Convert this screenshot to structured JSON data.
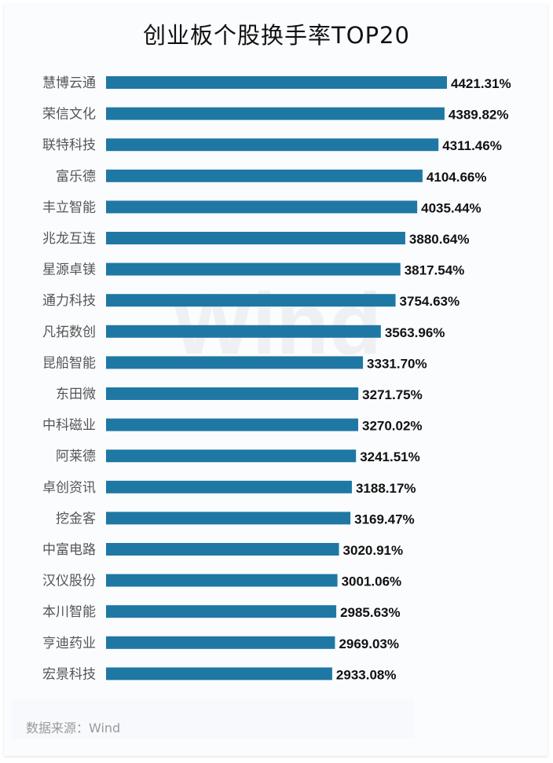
{
  "chart_data": {
    "type": "bar",
    "orientation": "horizontal",
    "title": "创业板个股换手率TOP20",
    "categories": [
      "慧博云通",
      "荣信文化",
      "联特科技",
      "富乐德",
      "丰立智能",
      "兆龙互连",
      "星源卓镁",
      "通力科技",
      "凡拓数创",
      "昆船智能",
      "东田微",
      "中科磁业",
      "阿莱德",
      "卓创资讯",
      "挖金客",
      "中富电路",
      "汉仪股份",
      "本川智能",
      "亨迪药业",
      "宏景科技"
    ],
    "values": [
      4421.31,
      4389.82,
      4311.46,
      4104.66,
      4035.44,
      3880.64,
      3817.54,
      3754.63,
      3563.96,
      3331.7,
      3271.75,
      3270.02,
      3241.51,
      3188.17,
      3169.47,
      3020.91,
      3001.06,
      2985.63,
      2969.03,
      2933.08
    ],
    "labels": [
      "4421.31%",
      "4389.82%",
      "4311.46%",
      "4104.66%",
      "4035.44%",
      "3880.64%",
      "3817.54%",
      "3754.63%",
      "3563.96%",
      "3331.70%",
      "3271.75%",
      "3270.02%",
      "3241.51%",
      "3188.17%",
      "3169.47%",
      "3020.91%",
      "3001.06%",
      "2985.63%",
      "2969.03%",
      "2933.08%"
    ],
    "unit": "%",
    "xlim": [
      0,
      4421.31
    ],
    "bar_color": "#1f77a4",
    "grid": false,
    "legend": "none"
  },
  "source": "数据来源：Wind",
  "watermark": "Wind"
}
